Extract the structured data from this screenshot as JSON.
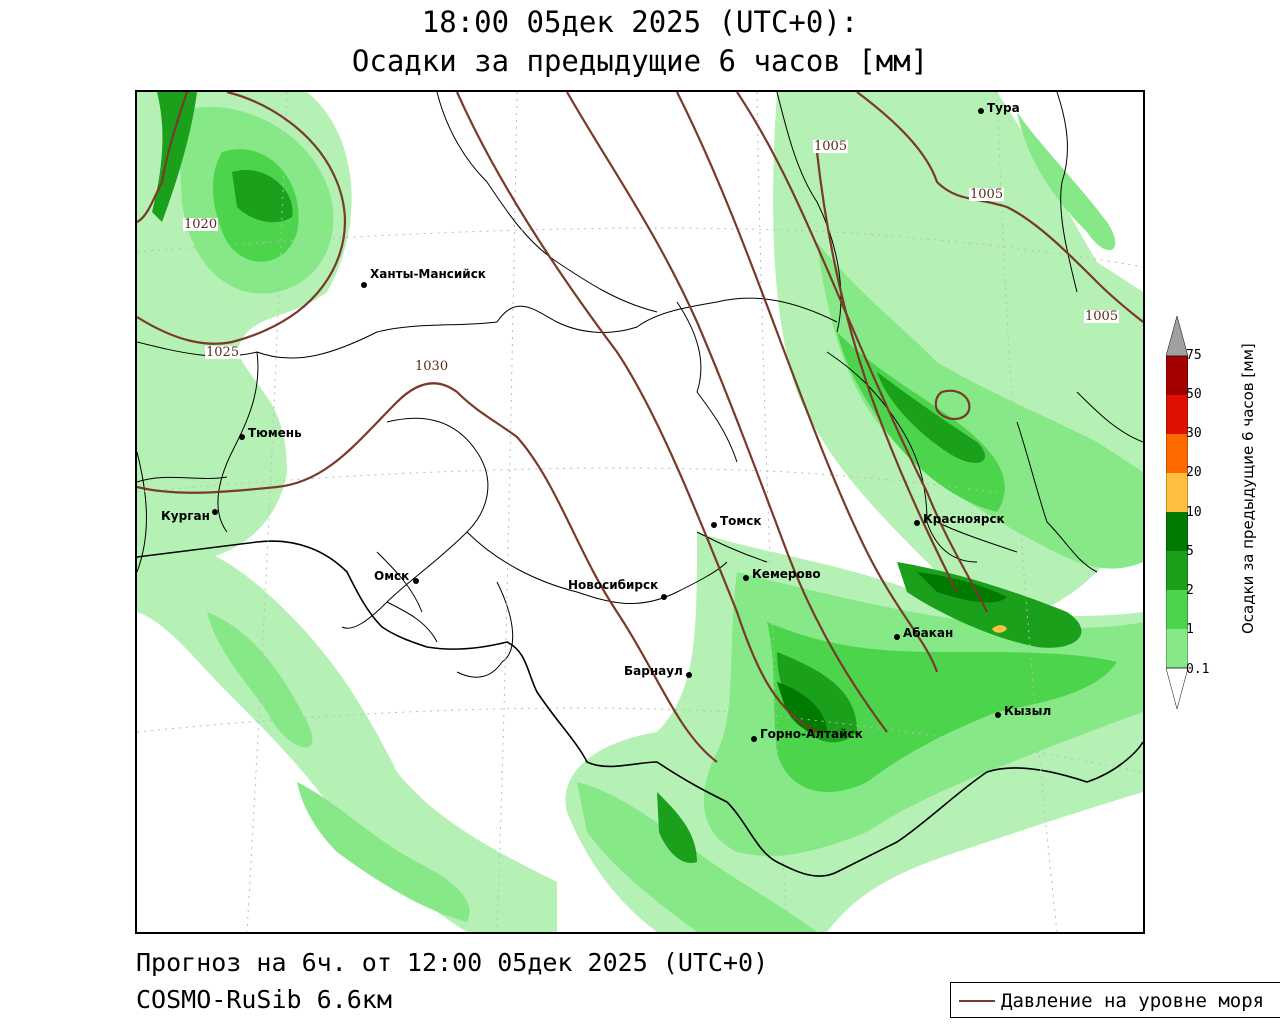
{
  "title": {
    "line1": "18:00 05дек 2025 (UTC+0):",
    "line2": "Осадки за предыдущие 6 часов [мм]"
  },
  "footer": {
    "forecast": "Прогноз на 6ч. от 12:00 05дек 2025 (UTC+0)",
    "model": "COSMO-RuSib 6.6км"
  },
  "legend": {
    "title": "Осадки за предыдущие 6 часов [мм]",
    "ticks": [
      "75",
      "50",
      "30",
      "20",
      "10",
      "5",
      "2",
      "1",
      "0.1"
    ],
    "colors": [
      "#a0a0a0",
      "#a50000",
      "#e01000",
      "#ff6a00",
      "#ffc040",
      "#007a00",
      "#1aa01a",
      "#4cd44c",
      "#86e886",
      "#b5f0b5",
      "#ffffff"
    ]
  },
  "key": {
    "label": "Давление на уровне моря",
    "color": "#7a3a2a"
  },
  "isobars": [
    "1020",
    "1025",
    "1030",
    "1005",
    "1005",
    "1005"
  ],
  "cities": [
    {
      "name": "Тура"
    },
    {
      "name": "Ханты-Мансийск"
    },
    {
      "name": "Тюмень"
    },
    {
      "name": "Курган"
    },
    {
      "name": "Омск"
    },
    {
      "name": "Томск"
    },
    {
      "name": "Красноярск"
    },
    {
      "name": "Кемерово"
    },
    {
      "name": "Новосибирск"
    },
    {
      "name": "Абакан"
    },
    {
      "name": "Барнаул"
    },
    {
      "name": "Кызыл"
    },
    {
      "name": "Горно-Алтайск"
    }
  ]
}
